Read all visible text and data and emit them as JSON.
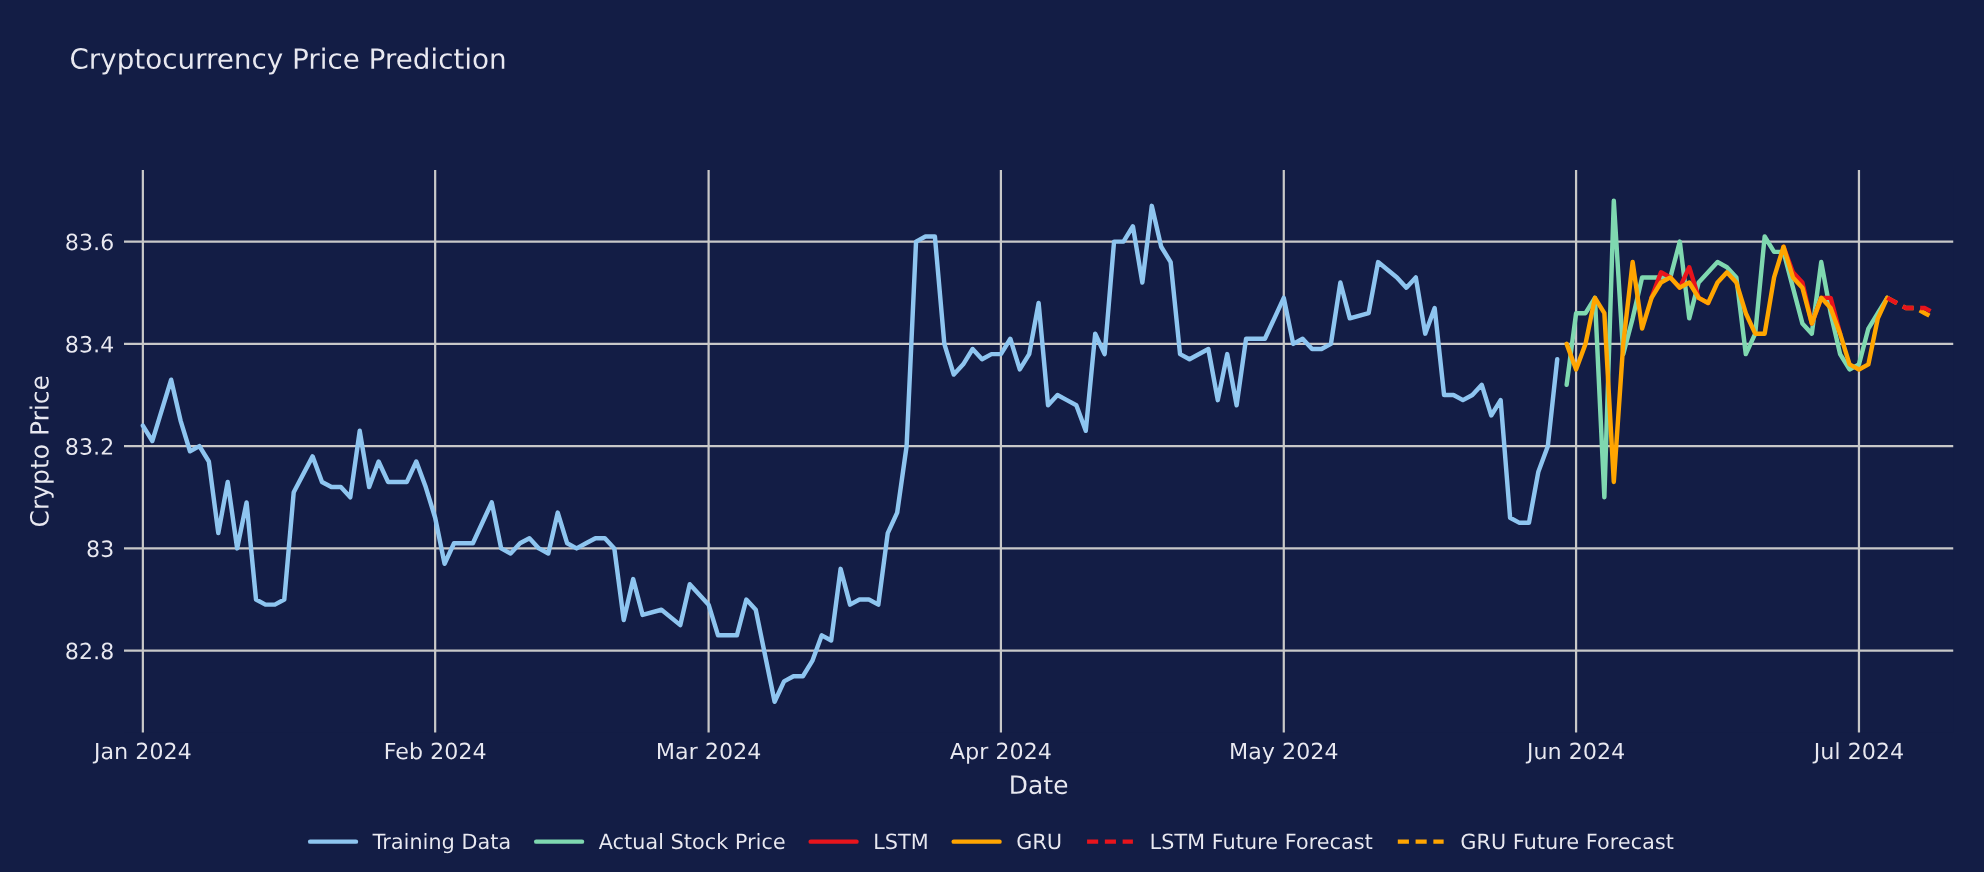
{
  "chart_data": {
    "type": "line",
    "title": "Cryptocurrency Price Prediction",
    "xlabel": "Date",
    "ylabel": "Crypto Price",
    "xlim": [
      "2023-12-30",
      "2024-07-11"
    ],
    "ylim": [
      82.64,
      83.74
    ],
    "xticks": [
      {
        "value": "2024-01-01",
        "label": "Jan 2024"
      },
      {
        "value": "2024-02-01",
        "label": "Feb 2024"
      },
      {
        "value": "2024-03-01",
        "label": "Mar 2024"
      },
      {
        "value": "2024-04-01",
        "label": "Apr 2024"
      },
      {
        "value": "2024-05-01",
        "label": "May 2024"
      },
      {
        "value": "2024-06-01",
        "label": "Jun 2024"
      },
      {
        "value": "2024-07-01",
        "label": "Jul 2024"
      }
    ],
    "yticks": [
      82.8,
      83,
      83.2,
      83.4,
      83.6
    ],
    "grid": true,
    "legend": "bottom",
    "series": [
      {
        "name": "Training Data",
        "color": "#8ec5f0",
        "line_style": "solid",
        "x": [
          "2024-01-01",
          "2024-01-02",
          "2024-01-04",
          "2024-01-05",
          "2024-01-06",
          "2024-01-07",
          "2024-01-08",
          "2024-01-09",
          "2024-01-10",
          "2024-01-11",
          "2024-01-12",
          "2024-01-13",
          "2024-01-14",
          "2024-01-15",
          "2024-01-16",
          "2024-01-17",
          "2024-01-19",
          "2024-01-20",
          "2024-01-21",
          "2024-01-22",
          "2024-01-23",
          "2024-01-24",
          "2024-01-25",
          "2024-01-26",
          "2024-01-27",
          "2024-01-29",
          "2024-01-30",
          "2024-01-31",
          "2024-02-01",
          "2024-02-02",
          "2024-02-03",
          "2024-02-04",
          "2024-02-05",
          "2024-02-07",
          "2024-02-08",
          "2024-02-09",
          "2024-02-10",
          "2024-02-11",
          "2024-02-12",
          "2024-02-13",
          "2024-02-14",
          "2024-02-15",
          "2024-02-16",
          "2024-02-17",
          "2024-02-18",
          "2024-02-19",
          "2024-02-20",
          "2024-02-21",
          "2024-02-22",
          "2024-02-23",
          "2024-02-25",
          "2024-02-27",
          "2024-02-28",
          "2024-02-29",
          "2024-03-01",
          "2024-03-02",
          "2024-03-03",
          "2024-03-04",
          "2024-03-05",
          "2024-03-06",
          "2024-03-07",
          "2024-03-08",
          "2024-03-09",
          "2024-03-10",
          "2024-03-11",
          "2024-03-12",
          "2024-03-13",
          "2024-03-14",
          "2024-03-15",
          "2024-03-16",
          "2024-03-17",
          "2024-03-18",
          "2024-03-19",
          "2024-03-20",
          "2024-03-21",
          "2024-03-22",
          "2024-03-23",
          "2024-03-24",
          "2024-03-25",
          "2024-03-26",
          "2024-03-27",
          "2024-03-28",
          "2024-03-29",
          "2024-03-30",
          "2024-03-31",
          "2024-04-01",
          "2024-04-02",
          "2024-04-03",
          "2024-04-04",
          "2024-04-05",
          "2024-04-06",
          "2024-04-07",
          "2024-04-08",
          "2024-04-09",
          "2024-04-10",
          "2024-04-11",
          "2024-04-12",
          "2024-04-13",
          "2024-04-14",
          "2024-04-15",
          "2024-04-16",
          "2024-04-17",
          "2024-04-18",
          "2024-04-19",
          "2024-04-20",
          "2024-04-21",
          "2024-04-23",
          "2024-04-24",
          "2024-04-25",
          "2024-04-26",
          "2024-04-27",
          "2024-04-29",
          "2024-04-30",
          "2024-05-01",
          "2024-05-02",
          "2024-05-03",
          "2024-05-04",
          "2024-05-05",
          "2024-05-06",
          "2024-05-07",
          "2024-05-08",
          "2024-05-10",
          "2024-05-11",
          "2024-05-13",
          "2024-05-14",
          "2024-05-15",
          "2024-05-16",
          "2024-05-17",
          "2024-05-18",
          "2024-05-19",
          "2024-05-20",
          "2024-05-21",
          "2024-05-22",
          "2024-05-23",
          "2024-05-24",
          "2024-05-25",
          "2024-05-26",
          "2024-05-27",
          "2024-05-28",
          "2024-05-29",
          "2024-05-30"
        ],
        "values": [
          83.24,
          83.21,
          83.33,
          83.25,
          83.19,
          83.2,
          83.17,
          83.03,
          83.13,
          83.0,
          83.09,
          82.9,
          82.89,
          82.89,
          82.9,
          83.11,
          83.18,
          83.13,
          83.12,
          83.12,
          83.1,
          83.23,
          83.12,
          83.17,
          83.13,
          83.13,
          83.17,
          83.12,
          83.06,
          82.97,
          83.01,
          83.01,
          83.01,
          83.09,
          83.0,
          82.99,
          83.01,
          83.02,
          83.0,
          82.99,
          83.07,
          83.01,
          83.0,
          83.01,
          83.02,
          83.02,
          83.0,
          82.86,
          82.94,
          82.87,
          82.88,
          82.85,
          82.93,
          82.91,
          82.89,
          82.83,
          82.83,
          82.83,
          82.9,
          82.88,
          82.79,
          82.7,
          82.74,
          82.75,
          82.75,
          82.78,
          82.83,
          82.82,
          82.96,
          82.89,
          82.9,
          82.9,
          82.89,
          83.03,
          83.07,
          83.2,
          83.6,
          83.61,
          83.61,
          83.4,
          83.34,
          83.36,
          83.39,
          83.37,
          83.38,
          83.38,
          83.41,
          83.35,
          83.38,
          83.48,
          83.28,
          83.3,
          83.29,
          83.28,
          83.23,
          83.42,
          83.38,
          83.6,
          83.6,
          83.63,
          83.52,
          83.67,
          83.59,
          83.56,
          83.38,
          83.37,
          83.39,
          83.29,
          83.38,
          83.28,
          83.41,
          83.41,
          83.45,
          83.49,
          83.4,
          83.41,
          83.39,
          83.39,
          83.4,
          83.52,
          83.45,
          83.46,
          83.56,
          83.53,
          83.51,
          83.53,
          83.42,
          83.47,
          83.3,
          83.3,
          83.29,
          83.3,
          83.32,
          83.26,
          83.29,
          83.06,
          83.05,
          83.05,
          83.15,
          83.2,
          83.37
        ]
      },
      {
        "name": "Actual Stock Price",
        "color": "#7fd8b0",
        "line_style": "solid",
        "x": [
          "2024-05-31",
          "2024-06-01",
          "2024-06-02",
          "2024-06-03",
          "2024-06-04",
          "2024-06-05",
          "2024-06-06",
          "2024-06-07",
          "2024-06-08",
          "2024-06-09",
          "2024-06-10",
          "2024-06-11",
          "2024-06-12",
          "2024-06-13",
          "2024-06-14",
          "2024-06-15",
          "2024-06-16",
          "2024-06-17",
          "2024-06-18",
          "2024-06-19",
          "2024-06-20",
          "2024-06-21",
          "2024-06-22",
          "2024-06-23",
          "2024-06-24",
          "2024-06-25",
          "2024-06-26",
          "2024-06-27",
          "2024-06-28",
          "2024-06-29",
          "2024-06-30",
          "2024-07-01",
          "2024-07-02",
          "2024-07-03",
          "2024-07-04"
        ],
        "values": [
          83.32,
          83.46,
          83.46,
          83.49,
          83.1,
          83.68,
          83.38,
          83.45,
          83.53,
          83.53,
          83.53,
          83.53,
          83.6,
          83.45,
          83.52,
          83.54,
          83.56,
          83.55,
          83.53,
          83.38,
          83.42,
          83.61,
          83.58,
          83.58,
          83.51,
          83.44,
          83.42,
          83.56,
          83.46,
          83.38,
          83.35,
          83.36,
          83.43,
          83.46,
          83.49
        ]
      },
      {
        "name": "LSTM",
        "color": "#e8141c",
        "line_style": "solid",
        "x": [
          "2024-06-09",
          "2024-06-10",
          "2024-06-11",
          "2024-06-12",
          "2024-06-13",
          "2024-06-14",
          "2024-06-15",
          "2024-06-16",
          "2024-06-17",
          "2024-06-18",
          "2024-06-19",
          "2024-06-20",
          "2024-06-21",
          "2024-06-22",
          "2024-06-23",
          "2024-06-24",
          "2024-06-25",
          "2024-06-26",
          "2024-06-27",
          "2024-06-28",
          "2024-06-29"
        ],
        "values": [
          83.49,
          83.54,
          83.53,
          83.51,
          83.55,
          83.49,
          83.48,
          null,
          null,
          null,
          null,
          null,
          null,
          null,
          83.59,
          83.54,
          83.52,
          83.44,
          83.49,
          83.49,
          83.42
        ]
      },
      {
        "name": "GRU",
        "color": "#ffa500",
        "line_style": "solid",
        "x": [
          "2024-05-31",
          "2024-06-01",
          "2024-06-02",
          "2024-06-03",
          "2024-06-04",
          "2024-06-05",
          "2024-06-06",
          "2024-06-07",
          "2024-06-08",
          "2024-06-09",
          "2024-06-10",
          "2024-06-11",
          "2024-06-12",
          "2024-06-13",
          "2024-06-14",
          "2024-06-15",
          "2024-06-16",
          "2024-06-17",
          "2024-06-18",
          "2024-06-19",
          "2024-06-20",
          "2024-06-21",
          "2024-06-22",
          "2024-06-23",
          "2024-06-24",
          "2024-06-25",
          "2024-06-26",
          "2024-06-27",
          "2024-06-28",
          "2024-06-29",
          "2024-06-30",
          "2024-07-01",
          "2024-07-02",
          "2024-07-03",
          "2024-07-04"
        ],
        "values": [
          83.4,
          83.35,
          83.4,
          83.49,
          83.46,
          83.13,
          83.4,
          83.56,
          83.43,
          83.49,
          83.52,
          83.53,
          83.51,
          83.52,
          83.49,
          83.48,
          83.52,
          83.54,
          83.52,
          83.46,
          83.42,
          83.42,
          83.53,
          83.59,
          83.53,
          83.51,
          83.44,
          83.49,
          83.47,
          83.42,
          83.36,
          83.35,
          83.36,
          83.45,
          83.49
        ]
      },
      {
        "name": "LSTM Future Forecast",
        "color": "#e8141c",
        "line_style": "dashed",
        "x": [
          "2024-07-04",
          "2024-07-05",
          "2024-07-06",
          "2024-07-07",
          "2024-07-08",
          "2024-07-09"
        ],
        "values": [
          83.49,
          83.48,
          83.47,
          83.47,
          83.47,
          83.46
        ]
      },
      {
        "name": "GRU Future Forecast",
        "color": "#ffa500",
        "line_style": "dashed",
        "x": [
          "2024-07-04",
          "2024-07-05",
          "2024-07-06",
          "2024-07-07",
          "2024-07-08",
          "2024-07-09"
        ],
        "values": [
          83.49,
          83.48,
          83.47,
          83.47,
          83.46,
          83.45
        ]
      }
    ]
  }
}
